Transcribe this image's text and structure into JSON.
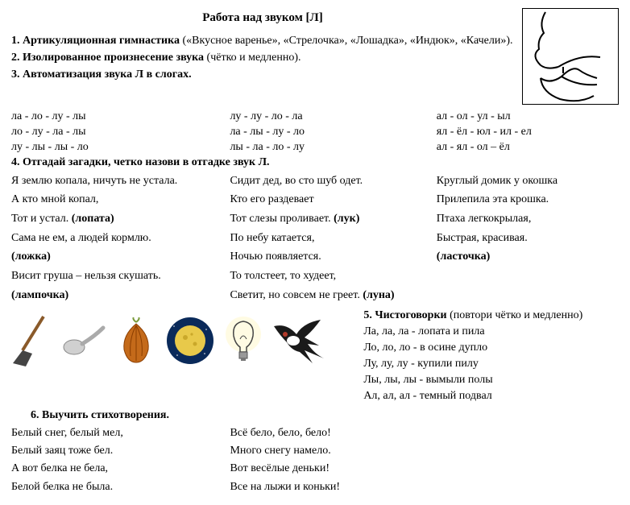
{
  "title": "Работа над звуком [Л]",
  "section1": {
    "label_bold": "1. Артикуляционная гимнастика",
    "label_rest": " («Вкусное варенье», «Стрелочка», «Лошадка», «Индюк», «Качели»)."
  },
  "section2": {
    "label_bold": "2. Изолированное произнесение звука",
    "label_rest": " (чётко и медленно)."
  },
  "section3": {
    "label_bold": "3. Автоматизация звука Л в слогах."
  },
  "syllables": {
    "rows": [
      {
        "c1": "ла - ло - лу - лы",
        "c2": "лу - лу - ло - ла",
        "c3": "ал - ол - ул - ыл"
      },
      {
        "c1": "ло - лу - ла - лы",
        "c2": "ла - лы - лу - ло",
        "c3": "ял - ёл - юл - ил - ел"
      },
      {
        "c1": "лу - лы - лы - ло",
        "c2": "лы - ла - ло - лу",
        "c3": "ал - ял - ол – ёл"
      }
    ]
  },
  "section4": {
    "label_bold": "4. Отгадай загадки, четко назови в отгадке звук Л."
  },
  "riddles": {
    "col1": [
      "Я землю копала, ничуть не устала.",
      "А кто мной копал,",
      "Тот и устал. (лопата)",
      "Сама не ем, а людей кормлю.",
      "(ложка)",
      "Висит груша – нельзя скушать.",
      "(лампочка)"
    ],
    "col2": [
      "Сидит дед, во сто шуб одет.",
      "Кто его раздевает",
      "Тот слезы проливает. (лук)",
      "По небу катается,",
      "Ночью появляется.",
      "То толстеет, то худеет,",
      "Светит, но совсем не греет. (луна)"
    ],
    "col3": [
      "Круглый домик у окошка",
      "Прилепила эта крошка.",
      "Птаха легкокрылая,",
      "Быстрая, красивая.",
      "(ласточка)"
    ]
  },
  "section5": {
    "label_bold": "5. Чистоговорки",
    "label_rest": " (повтори чётко и медленно)"
  },
  "chisto_lines": [
    "Ла, ла, ла - лопата и пила",
    "Ло, ло, ло - в осине дупло",
    "Лу, лу, лу - купили пилу",
    "Лы, лы, лы - вымыли полы",
    "Ал, ал, ал - темный подвал"
  ],
  "section6": {
    "label_bold": "6. Выучить стихотворения."
  },
  "poems": {
    "col1": [
      "Белый снег, белый мел,",
      "Белый заяц тоже бел.",
      "А вот белка не бела,",
      "Белой белка не была."
    ],
    "col2": [
      "Всё бело, бело, бело!",
      "Много снегу намело.",
      "Вот весёлые деньки!",
      "Все на лыжи и коньки!"
    ]
  },
  "icons": [
    {
      "name": "shovel-icon"
    },
    {
      "name": "spoon-icon"
    },
    {
      "name": "onion-icon"
    },
    {
      "name": "moon-night-icon"
    },
    {
      "name": "lightbulb-icon"
    },
    {
      "name": "swallow-bird-icon"
    }
  ],
  "bold_answers": [
    "(лопата)",
    "(ложка)",
    "(лампочка)",
    "(лук)",
    "(луна)",
    "(ласточка)"
  ],
  "colors": {
    "text": "#000000",
    "bg": "#ffffff",
    "onion": "#c46a1a",
    "onion_dark": "#8a3d00",
    "moon_sky": "#0a2a5a",
    "moon": "#e8c94a",
    "bird": "#1a1a1a",
    "bird_belly": "#ffffff",
    "bird_throat": "#b33a2a",
    "spoon": "#d0d0d0",
    "shovel_handle": "#8a5a2a"
  }
}
